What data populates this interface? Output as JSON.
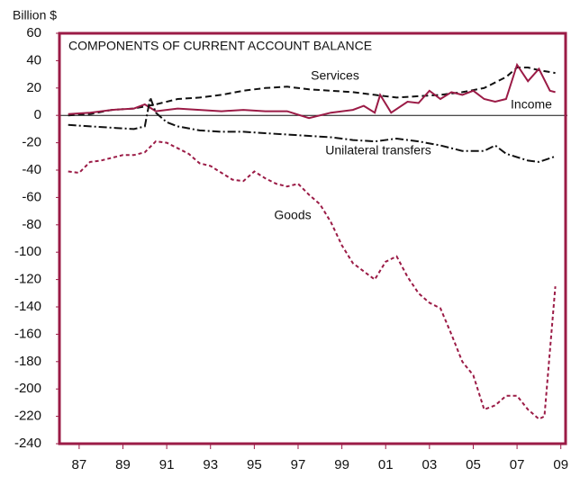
{
  "chart_data": {
    "type": "line",
    "title": "COMPONENTS OF CURRENT ACCOUNT BALANCE",
    "y_label": "Billion $",
    "xlim": [
      1986.6,
      2009.8
    ],
    "xticks": [
      {
        "value": 1987.5,
        "label": "87"
      },
      {
        "value": 1989.5,
        "label": "89"
      },
      {
        "value": 1991.5,
        "label": "91"
      },
      {
        "value": 1993.5,
        "label": "93"
      },
      {
        "value": 1995.5,
        "label": "95"
      },
      {
        "value": 1997.5,
        "label": "97"
      },
      {
        "value": 1999.5,
        "label": "99"
      },
      {
        "value": 2001.5,
        "label": "01"
      },
      {
        "value": 2003.5,
        "label": "03"
      },
      {
        "value": 2005.5,
        "label": "05"
      },
      {
        "value": 2007.5,
        "label": "07"
      },
      {
        "value": 2009.5,
        "label": "09"
      }
    ],
    "ylim": [
      -240,
      60
    ],
    "yticks": [
      60,
      40,
      20,
      0,
      -20,
      -40,
      -60,
      -80,
      -100,
      -120,
      -140,
      -160,
      -180,
      -200,
      -220,
      -240
    ],
    "frame_color": "#9b1b46",
    "series": [
      {
        "name": "Services",
        "color": "#111111",
        "dash": "7,4",
        "x": [
          1987,
          1988,
          1989,
          1990,
          1991,
          1992,
          1993,
          1994,
          1995,
          1996,
          1997,
          1998,
          1999,
          2000,
          2001,
          2002,
          2003,
          2004,
          2005,
          2006,
          2007,
          2007.5,
          2008,
          2008.5,
          2009.25
        ],
        "values": [
          0,
          1,
          4,
          5,
          8,
          12,
          13,
          15,
          18,
          20,
          21,
          19,
          18,
          17,
          15,
          13,
          14,
          15,
          17,
          20,
          28,
          35,
          35,
          33,
          31
        ]
      },
      {
        "name": "Income",
        "color": "#9b1b46",
        "dash": "",
        "x": [
          1987,
          1988,
          1989,
          1990,
          1990.5,
          1991,
          1992,
          1993,
          1994,
          1995,
          1996,
          1997,
          1998,
          1999,
          2000,
          2000.5,
          2001,
          2001.25,
          2001.75,
          2002.5,
          2003,
          2003.5,
          2004,
          2004.5,
          2005,
          2005.5,
          2006,
          2006.5,
          2007,
          2007.5,
          2008,
          2008.5,
          2009,
          2009.25
        ],
        "values": [
          1,
          2,
          4,
          5,
          8,
          3,
          5,
          4,
          3,
          4,
          3,
          3,
          -2,
          2,
          4,
          7,
          2,
          15,
          2,
          10,
          9,
          18,
          12,
          17,
          15,
          18,
          12,
          10,
          12,
          37,
          25,
          34,
          18,
          17
        ]
      },
      {
        "name": "Unilateral transfers",
        "color": "#111111",
        "dash": "9,3,2,3",
        "x": [
          1987,
          1988,
          1989,
          1990,
          1990.5,
          1990.75,
          1991,
          1991.5,
          1992,
          1993,
          1994,
          1995,
          1996,
          1997,
          1998,
          1999,
          2000,
          2001,
          2002,
          2003,
          2004,
          2005,
          2006,
          2006.5,
          2007,
          2008,
          2008.5,
          2009.25
        ],
        "values": [
          -7,
          -8,
          -9,
          -10,
          -8,
          13,
          2,
          -5,
          -8,
          -11,
          -12,
          -12,
          -13,
          -14,
          -15,
          -16,
          -18,
          -19,
          -17,
          -19,
          -22,
          -26,
          -26,
          -22,
          -28,
          -33,
          -34,
          -30
        ]
      },
      {
        "name": "Goods",
        "color": "#9b1b46",
        "dash": "4,3",
        "x": [
          1987,
          1987.5,
          1988,
          1988.5,
          1989,
          1989.5,
          1990,
          1990.5,
          1991,
          1991.5,
          1992,
          1992.5,
          1993,
          1993.5,
          1994,
          1994.5,
          1995,
          1995.5,
          1996,
          1996.5,
          1997,
          1997.5,
          1998,
          1998.5,
          1999,
          1999.5,
          2000,
          2000.5,
          2001,
          2001.5,
          2002,
          2002.5,
          2003,
          2003.5,
          2004,
          2004.5,
          2005,
          2005.5,
          2006,
          2006.5,
          2007,
          2007.5,
          2008,
          2008.5,
          2008.75,
          2009.25
        ],
        "values": [
          -41,
          -42,
          -34,
          -33,
          -31,
          -29,
          -29,
          -27,
          -19,
          -20,
          -24,
          -28,
          -35,
          -37,
          -42,
          -47,
          -48,
          -41,
          -46,
          -50,
          -52,
          -50,
          -58,
          -65,
          -78,
          -95,
          -108,
          -114,
          -120,
          -107,
          -103,
          -118,
          -130,
          -137,
          -141,
          -160,
          -180,
          -190,
          -215,
          -212,
          -205,
          -205,
          -215,
          -222,
          -220,
          -125
        ]
      }
    ]
  }
}
